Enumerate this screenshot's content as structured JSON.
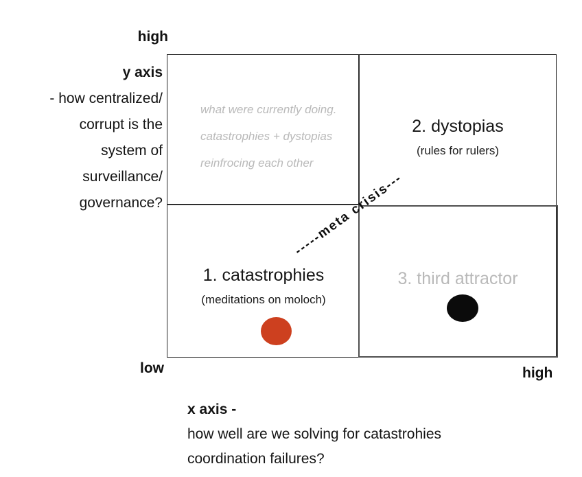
{
  "y_axis": {
    "top_label": "high",
    "bottom_label": "low",
    "title": "y axis",
    "lines": [
      "- how centralized/",
      "corrupt is the",
      "system of",
      "surveillance/",
      "governance?"
    ]
  },
  "x_axis": {
    "right_label": "high",
    "title": "x axis -",
    "lines": [
      "how well are we solving for catastrohies",
      "coordination failures?"
    ]
  },
  "diagonal_label": {
    "text": "-----meta crisis---"
  },
  "quadrants": {
    "top_left_note": {
      "lines": [
        "what were currently doing.",
        "catastrophies + dystopias",
        "reinfrocing each other"
      ],
      "color": "#b9b9b9"
    },
    "dystopias": {
      "title": "2. dystopias",
      "subtitle": "(rules for rulers)"
    },
    "catastrophies": {
      "title": "1. catastrophies",
      "subtitle": "(meditations on moloch)",
      "dot_color": "#cd401f"
    },
    "third_attractor": {
      "title": "3. third attractor",
      "title_color": "#b9b9b9",
      "dot_color": "#0b0b0b"
    }
  }
}
